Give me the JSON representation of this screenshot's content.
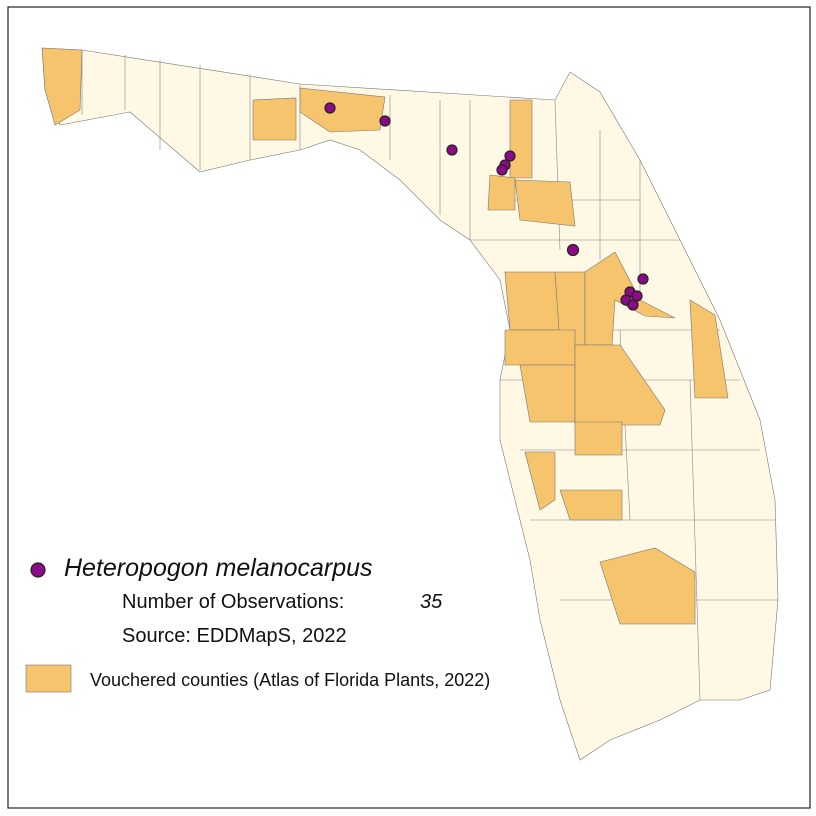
{
  "legend": {
    "species": "Heteropogon melanocarpus",
    "observations_label": "Number of Observations:",
    "observations_count": "35",
    "source": "Source: EDDMapS, 2022",
    "vouchered": "Vouchered counties (Atlas of Florida Plants, 2022)"
  }
}
